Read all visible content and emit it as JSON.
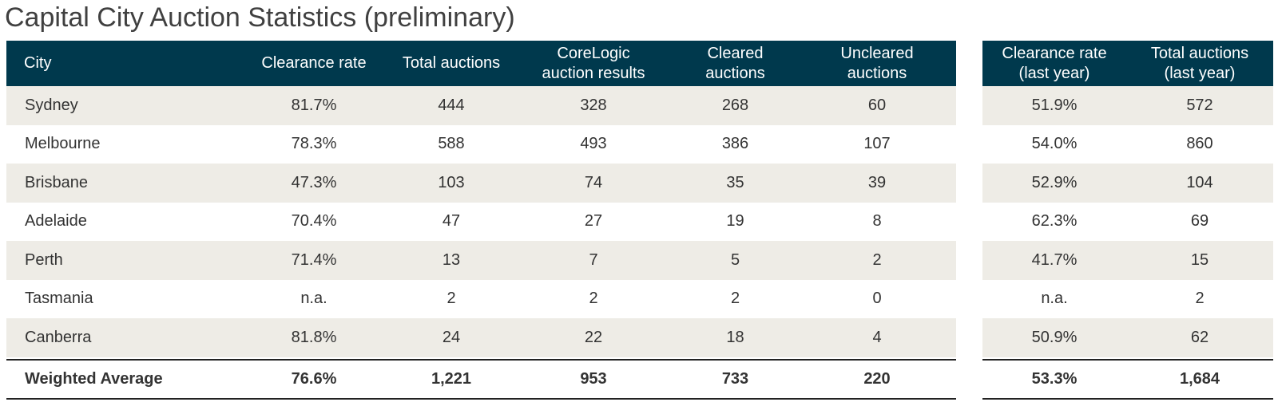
{
  "title": "Capital City Auction Statistics (preliminary)",
  "columns": {
    "city": "City",
    "clearance_rate": "Clearance rate",
    "total_auctions": "Total auctions",
    "corelogic_results": "CoreLogic\nauction results",
    "cleared": "Cleared\nauctions",
    "uncleared": "Uncleared\nauctions",
    "clearance_last_year": "Clearance rate\n(last year)",
    "total_last_year": "Total auctions\n(last year)"
  },
  "rows": [
    {
      "city": "Sydney",
      "clearance_rate": "81.7%",
      "total_auctions": "444",
      "corelogic_results": "328",
      "cleared": "268",
      "uncleared": "60",
      "clearance_last_year": "51.9%",
      "total_last_year": "572"
    },
    {
      "city": "Melbourne",
      "clearance_rate": "78.3%",
      "total_auctions": "588",
      "corelogic_results": "493",
      "cleared": "386",
      "uncleared": "107",
      "clearance_last_year": "54.0%",
      "total_last_year": "860"
    },
    {
      "city": "Brisbane",
      "clearance_rate": "47.3%",
      "total_auctions": "103",
      "corelogic_results": "74",
      "cleared": "35",
      "uncleared": "39",
      "clearance_last_year": "52.9%",
      "total_last_year": "104"
    },
    {
      "city": "Adelaide",
      "clearance_rate": "70.4%",
      "total_auctions": "47",
      "corelogic_results": "27",
      "cleared": "19",
      "uncleared": "8",
      "clearance_last_year": "62.3%",
      "total_last_year": "69"
    },
    {
      "city": "Perth",
      "clearance_rate": "71.4%",
      "total_auctions": "13",
      "corelogic_results": "7",
      "cleared": "5",
      "uncleared": "2",
      "clearance_last_year": "41.7%",
      "total_last_year": "15"
    },
    {
      "city": "Tasmania",
      "clearance_rate": "n.a.",
      "total_auctions": "2",
      "corelogic_results": "2",
      "cleared": "2",
      "uncleared": "0",
      "clearance_last_year": "n.a.",
      "total_last_year": "2"
    },
    {
      "city": "Canberra",
      "clearance_rate": "81.8%",
      "total_auctions": "24",
      "corelogic_results": "22",
      "cleared": "18",
      "uncleared": "4",
      "clearance_last_year": "50.9%",
      "total_last_year": "62"
    }
  ],
  "weighted_average": {
    "city": "Weighted Average",
    "clearance_rate": "76.6%",
    "total_auctions": "1,221",
    "corelogic_results": "953",
    "cleared": "733",
    "uncleared": "220",
    "clearance_last_year": "53.3%",
    "total_last_year": "1,684"
  },
  "colors": {
    "header_bg": "#00394d",
    "header_text": "#ffffff",
    "row_shade": "#eeece6",
    "text": "#333333"
  }
}
